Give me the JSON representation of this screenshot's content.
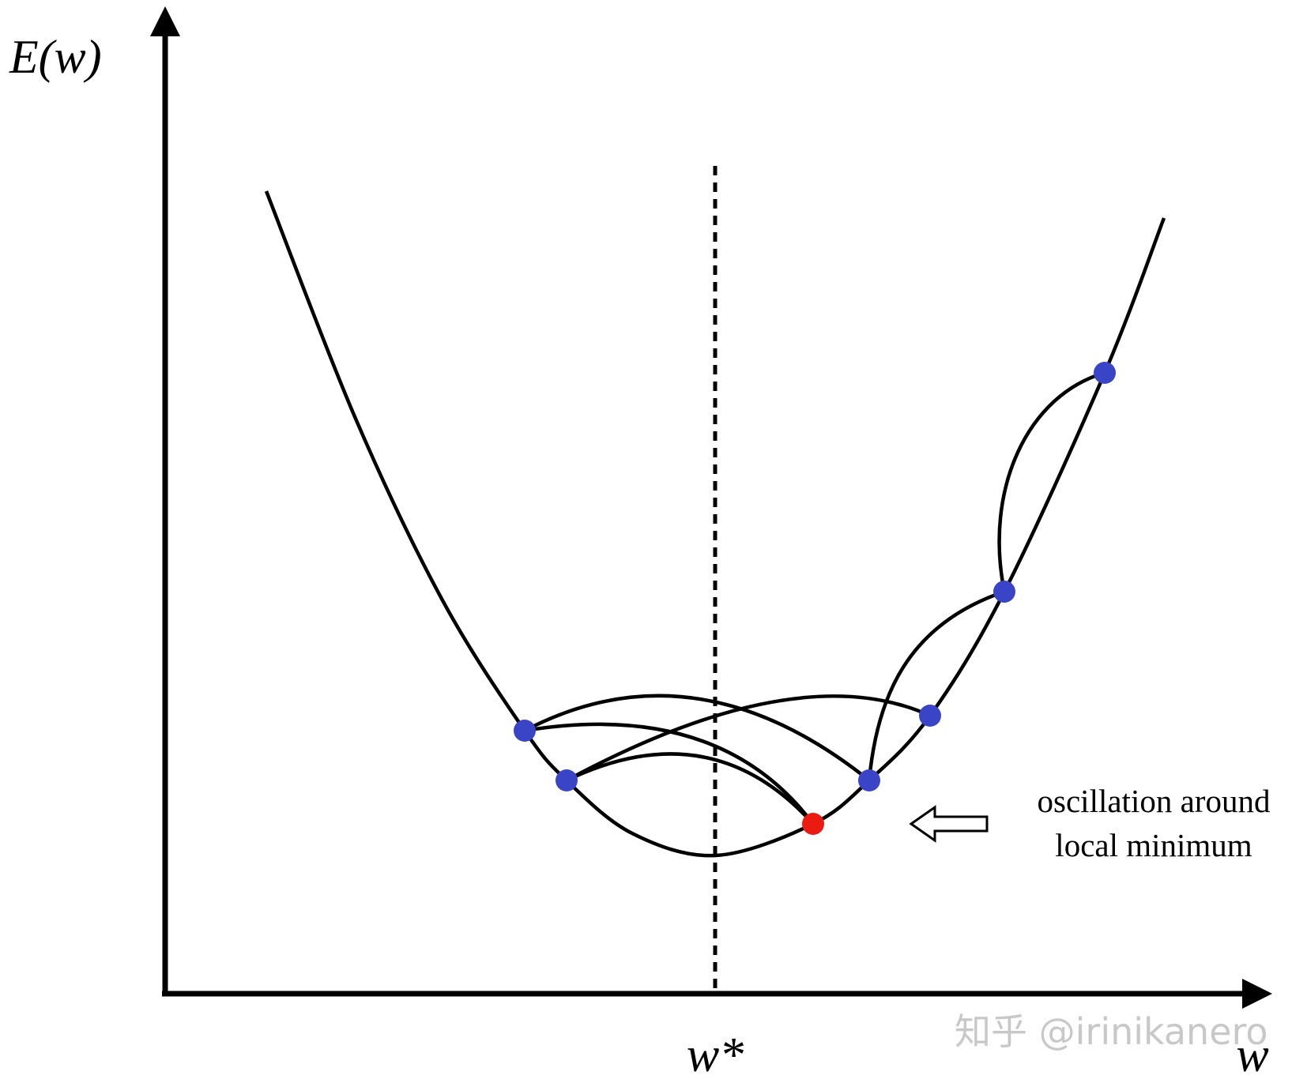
{
  "axes": {
    "y_label": "E(w)",
    "x_label": "w",
    "optimum_label": "w*"
  },
  "annotation": {
    "line1": "oscillation around",
    "line2": "local minimum"
  },
  "watermark": "知乎 @irinikanero"
}
